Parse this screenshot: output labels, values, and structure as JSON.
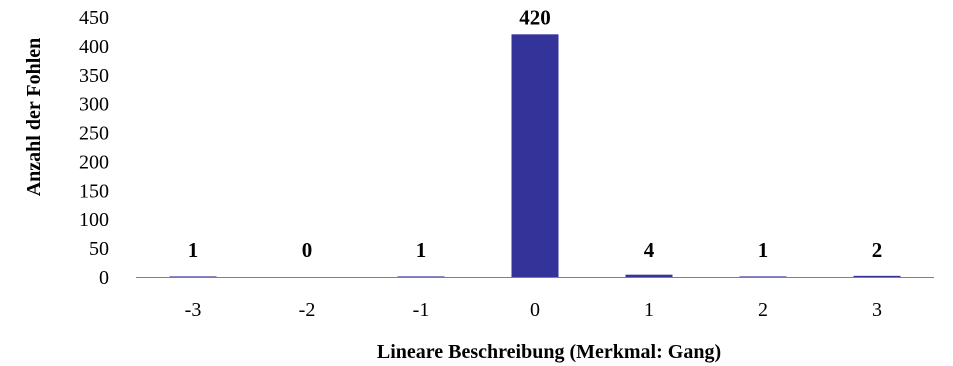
{
  "chart_data": {
    "type": "bar",
    "categories": [
      "-3",
      "-2",
      "-1",
      "0",
      "1",
      "2",
      "3"
    ],
    "values": [
      1,
      0,
      1,
      420,
      4,
      1,
      2
    ],
    "data_labels": [
      "1",
      "0",
      "1",
      "420",
      "4",
      "1",
      "2"
    ],
    "title": "",
    "xlabel": "Lineare Beschreibung (Merkmal: Gang)",
    "ylabel": "Anzahl der Fohlen",
    "ylim": [
      0,
      450
    ],
    "yticks": [
      "0",
      "50",
      "100",
      "150",
      "200",
      "250",
      "300",
      "350",
      "400",
      "450"
    ],
    "grid": false,
    "legend": "none",
    "bar_color": "#333399",
    "axis_color": "#808080"
  }
}
